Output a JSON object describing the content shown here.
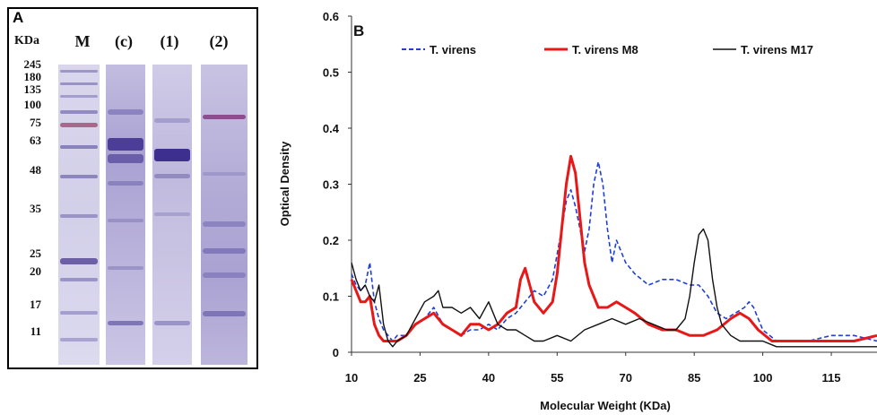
{
  "gel": {
    "panel_label": "A",
    "unit_label": "KDa",
    "lanes": [
      "M",
      "(c)",
      "(1)",
      "(2)"
    ],
    "marker_values": [
      "245",
      "180",
      "135",
      "100",
      "75",
      "63",
      "48",
      "35",
      "25",
      "20",
      "17",
      "11"
    ]
  },
  "chart_data": {
    "panel_label": "B",
    "type": "line",
    "xlabel": "Molecular Weight (KDa)",
    "ylabel": "Optical Density",
    "xlim": [
      10,
      125
    ],
    "ylim": [
      0,
      0.6
    ],
    "xticks": [
      "10",
      "25",
      "40",
      "55",
      "70",
      "85",
      "100",
      "115"
    ],
    "yticks": [
      "0",
      "0.1",
      "0.2",
      "0.3",
      "0.4",
      "0.5",
      "0.6"
    ],
    "grid": false,
    "legend_position": "top",
    "series": [
      {
        "name": "T. virens",
        "color": "#1f3fd6",
        "style": "dashed",
        "x": [
          10,
          11,
          12,
          13,
          14,
          15,
          16,
          17,
          18,
          19,
          20,
          22,
          24,
          26,
          28,
          30,
          32,
          34,
          36,
          38,
          40,
          42,
          44,
          46,
          48,
          50,
          52,
          54,
          56,
          57,
          58,
          59,
          60,
          61,
          62,
          63,
          64,
          65,
          66,
          67,
          68,
          70,
          72,
          75,
          78,
          81,
          84,
          86,
          88,
          90,
          92,
          94,
          96,
          97,
          98,
          100,
          103,
          106,
          110,
          115,
          120,
          125
        ],
        "y": [
          0.14,
          0.12,
          0.11,
          0.12,
          0.16,
          0.09,
          0.06,
          0.04,
          0.03,
          0.02,
          0.03,
          0.03,
          0.05,
          0.06,
          0.08,
          0.05,
          0.04,
          0.03,
          0.04,
          0.04,
          0.05,
          0.04,
          0.06,
          0.07,
          0.09,
          0.11,
          0.1,
          0.13,
          0.22,
          0.27,
          0.29,
          0.26,
          0.22,
          0.18,
          0.22,
          0.3,
          0.34,
          0.3,
          0.22,
          0.16,
          0.2,
          0.16,
          0.14,
          0.12,
          0.13,
          0.13,
          0.12,
          0.12,
          0.1,
          0.07,
          0.06,
          0.07,
          0.08,
          0.09,
          0.08,
          0.04,
          0.02,
          0.02,
          0.02,
          0.03,
          0.03,
          0.02
        ]
      },
      {
        "name": "T. virens M8",
        "color": "#e81818",
        "style": "solid",
        "x": [
          10,
          11,
          12,
          13,
          14,
          15,
          16,
          17,
          18,
          19,
          20,
          22,
          24,
          26,
          28,
          30,
          32,
          34,
          36,
          38,
          40,
          42,
          44,
          46,
          47,
          48,
          49,
          50,
          52,
          54,
          55,
          56,
          57,
          58,
          59,
          60,
          61,
          62,
          63,
          64,
          66,
          68,
          70,
          72,
          75,
          78,
          81,
          84,
          87,
          90,
          93,
          95,
          97,
          99,
          102,
          106,
          110,
          115,
          120,
          125
        ],
        "y": [
          0.13,
          0.11,
          0.09,
          0.09,
          0.1,
          0.05,
          0.03,
          0.02,
          0.02,
          0.02,
          0.02,
          0.03,
          0.05,
          0.06,
          0.07,
          0.05,
          0.04,
          0.03,
          0.05,
          0.05,
          0.04,
          0.05,
          0.07,
          0.08,
          0.13,
          0.15,
          0.12,
          0.09,
          0.07,
          0.09,
          0.14,
          0.22,
          0.3,
          0.35,
          0.32,
          0.24,
          0.16,
          0.12,
          0.1,
          0.08,
          0.08,
          0.09,
          0.08,
          0.07,
          0.05,
          0.04,
          0.04,
          0.03,
          0.03,
          0.04,
          0.06,
          0.07,
          0.06,
          0.04,
          0.02,
          0.02,
          0.02,
          0.02,
          0.02,
          0.03
        ]
      },
      {
        "name": "T. virens M17",
        "color": "#111111",
        "style": "solid",
        "x": [
          10,
          11,
          12,
          13,
          14,
          15,
          16,
          17,
          18,
          19,
          20,
          22,
          24,
          26,
          28,
          29,
          30,
          32,
          34,
          36,
          38,
          40,
          42,
          44,
          46,
          48,
          50,
          52,
          55,
          58,
          61,
          64,
          67,
          70,
          73,
          76,
          79,
          81,
          83,
          84,
          85,
          86,
          87,
          88,
          89,
          90,
          91,
          93,
          95,
          97,
          100,
          103,
          106,
          110,
          115,
          120,
          125
        ],
        "y": [
          0.16,
          0.13,
          0.11,
          0.12,
          0.1,
          0.09,
          0.12,
          0.05,
          0.02,
          0.01,
          0.02,
          0.03,
          0.06,
          0.09,
          0.1,
          0.11,
          0.08,
          0.08,
          0.07,
          0.08,
          0.06,
          0.09,
          0.05,
          0.04,
          0.04,
          0.03,
          0.02,
          0.02,
          0.03,
          0.02,
          0.04,
          0.05,
          0.06,
          0.05,
          0.06,
          0.05,
          0.04,
          0.04,
          0.06,
          0.1,
          0.16,
          0.21,
          0.22,
          0.2,
          0.13,
          0.08,
          0.05,
          0.03,
          0.02,
          0.02,
          0.02,
          0.01,
          0.01,
          0.01,
          0.01,
          0.01,
          0.01
        ]
      }
    ]
  }
}
